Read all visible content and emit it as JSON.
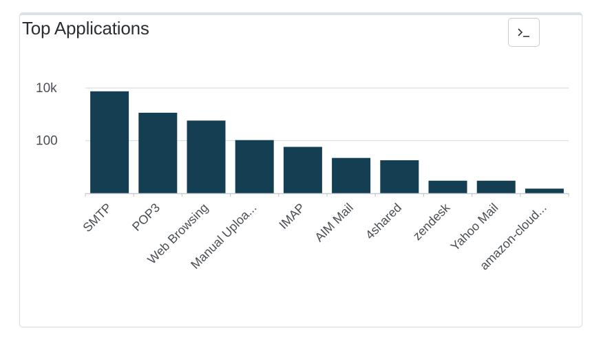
{
  "card": {
    "title": "Top Applications",
    "cli_icon": "terminal-prompt-icon"
  },
  "colors": {
    "bar": "#143f53",
    "grid": "#dadfe3",
    "axis": "#c3cad0",
    "text": "#4a4f55"
  },
  "chart_data": {
    "type": "bar",
    "title": "Top Applications",
    "scale": "log",
    "ylim": [
      1,
      10000
    ],
    "yticks": [
      {
        "value": 100,
        "label": "100"
      },
      {
        "value": 10000,
        "label": "10k"
      }
    ],
    "grid": true,
    "categories": [
      "SMTP",
      "POP3",
      "Web Browsing",
      "Manual Uploa...",
      "IMAP",
      "AIM Mail",
      "4shared",
      "zendesk",
      "Yahoo Mail",
      "amazon-cloud..."
    ],
    "values": [
      7500,
      1150,
      580,
      105,
      58,
      22,
      18,
      3,
      3,
      1.5
    ]
  }
}
